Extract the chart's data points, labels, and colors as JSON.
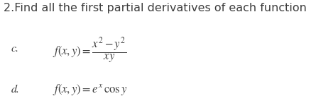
{
  "title": "2.Find all the first partial derivatives of each function",
  "title_fontsize": 11.5,
  "title_color": "#3d3d3d",
  "label_c": "c.",
  "label_d": "d.",
  "formula_c": "$f(x,y)=\\dfrac{x^2-y^2}{xy}$",
  "formula_d": "$f(x,y)=e^x\\,\\mathrm{cos}\\,y$",
  "formula_fontsize": 12,
  "label_fontsize": 11.5,
  "background_color": "#ffffff",
  "text_color": "#3d3d3d"
}
